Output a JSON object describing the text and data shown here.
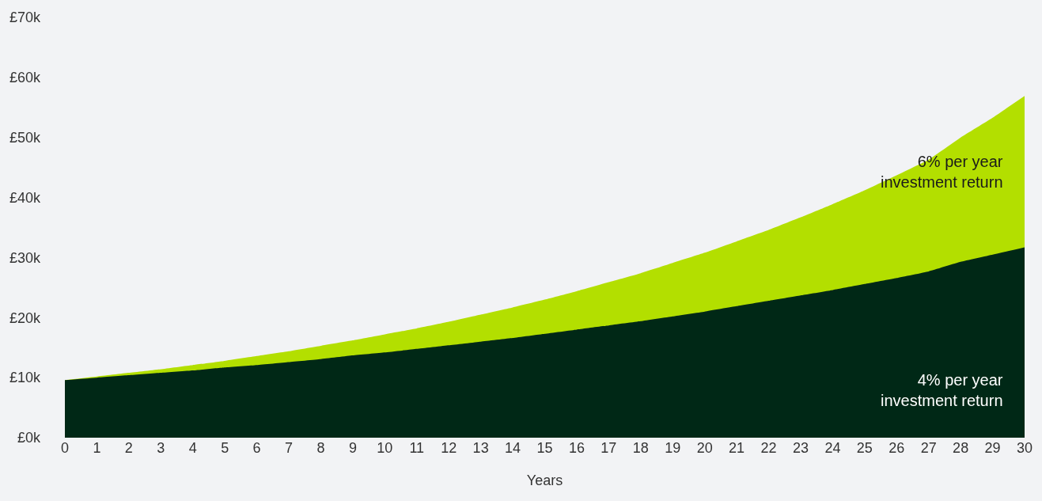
{
  "chart_data": {
    "type": "area",
    "xlabel": "Years",
    "x": [
      0,
      1,
      2,
      3,
      4,
      5,
      6,
      7,
      8,
      9,
      10,
      11,
      12,
      13,
      14,
      15,
      16,
      17,
      18,
      19,
      20,
      21,
      22,
      23,
      24,
      25,
      26,
      27,
      28,
      29,
      30
    ],
    "series": [
      {
        "name": "6% per year\ninvestment return",
        "color": "#b3df00",
        "values": [
          9.6,
          10.2,
          10.8,
          11.4,
          12.1,
          12.8,
          13.6,
          14.4,
          15.3,
          16.2,
          17.2,
          18.2,
          19.3,
          20.5,
          21.7,
          23.0,
          24.4,
          25.9,
          27.4,
          29.1,
          30.8,
          32.7,
          34.6,
          36.7,
          38.9,
          41.2,
          43.7,
          46.3,
          50.0,
          53.3,
          56.9
        ]
      },
      {
        "name": "4% per year\ninvestment return",
        "color": "#002816",
        "values": [
          9.6,
          10.0,
          10.4,
          10.8,
          11.2,
          11.7,
          12.1,
          12.6,
          13.1,
          13.7,
          14.2,
          14.8,
          15.4,
          16.0,
          16.6,
          17.3,
          18.0,
          18.7,
          19.4,
          20.2,
          21.0,
          21.9,
          22.8,
          23.7,
          24.6,
          25.6,
          26.6,
          27.7,
          29.3,
          30.5,
          31.7
        ]
      }
    ],
    "xlim": [
      0,
      30
    ],
    "xticks": [
      0,
      1,
      2,
      3,
      4,
      5,
      6,
      7,
      8,
      9,
      10,
      11,
      12,
      13,
      14,
      15,
      16,
      17,
      18,
      19,
      20,
      21,
      22,
      23,
      24,
      25,
      26,
      27,
      28,
      29,
      30
    ],
    "ylim": [
      0,
      70
    ],
    "yticks": [
      {
        "value": 0,
        "label": "£0k"
      },
      {
        "value": 10,
        "label": "£10k"
      },
      {
        "value": 20,
        "label": "£20k"
      },
      {
        "value": 30,
        "label": "£30k"
      },
      {
        "value": 40,
        "label": "£40k"
      },
      {
        "value": 50,
        "label": "£50k"
      },
      {
        "value": 60,
        "label": "£60k"
      },
      {
        "value": 70,
        "label": "£70k"
      }
    ],
    "grid": false,
    "legend": false
  }
}
